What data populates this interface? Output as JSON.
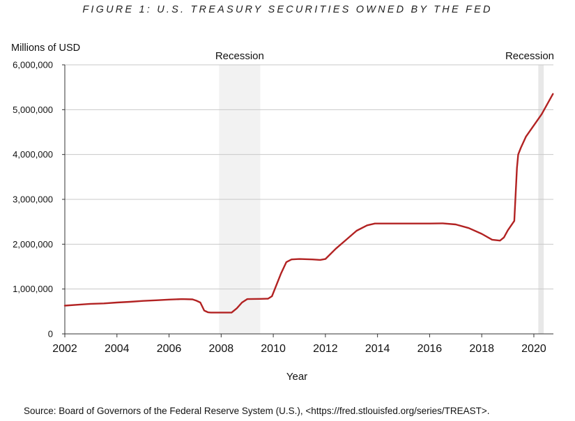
{
  "title": "FIGURE 1: U.S. TREASURY SECURITIES OWNED BY THE FED",
  "ylabel": "Millions of USD",
  "xlabel": "Year",
  "source": "Source: Board of Governors of the Federal Reserve System (U.S.), <https://fred.stlouisfed.org/series/TREAST>.",
  "chart_data": {
    "type": "line",
    "title": "FIGURE 1: U.S. TREASURY SECURITIES OWNED BY THE FED",
    "xlabel": "Year",
    "ylabel": "Millions of USD",
    "xlim": [
      2002,
      2020.75
    ],
    "ylim": [
      0,
      6000000
    ],
    "grid": true,
    "line_color": "#b22222",
    "recession_color": "#f2f2f2",
    "y_ticks": [
      0,
      1000000,
      2000000,
      3000000,
      4000000,
      5000000,
      6000000
    ],
    "y_tick_labels": [
      "0",
      "1,000,000",
      "2,000,000",
      "3,000,000",
      "4,000,000",
      "5,000,000",
      "6,000,000"
    ],
    "x_ticks": [
      2002,
      2004,
      2006,
      2008,
      2010,
      2012,
      2014,
      2016,
      2018,
      2020
    ],
    "x_tick_labels": [
      "2002",
      "2004",
      "2006",
      "2008",
      "2010",
      "2012",
      "2014",
      "2016",
      "2018",
      "2020"
    ],
    "recessions": [
      {
        "label": "Recession",
        "start": 2007.92,
        "end": 2009.5
      },
      {
        "label": "Recession",
        "start": 2020.17,
        "end": 2020.38
      }
    ],
    "x": [
      2002.0,
      2002.5,
      2003.0,
      2003.5,
      2004.0,
      2004.5,
      2005.0,
      2005.5,
      2006.0,
      2006.5,
      2006.9,
      2007.05,
      2007.2,
      2007.35,
      2007.5,
      2007.6,
      2008.0,
      2008.4,
      2008.6,
      2008.8,
      2009.0,
      2009.5,
      2009.8,
      2009.95,
      2010.3,
      2010.5,
      2010.7,
      2011.0,
      2011.5,
      2011.8,
      2012.0,
      2012.4,
      2012.8,
      2013.2,
      2013.6,
      2013.9,
      2014.5,
      2015.0,
      2015.5,
      2016.0,
      2016.5,
      2017.0,
      2017.5,
      2018.0,
      2018.4,
      2018.7,
      2018.85,
      2019.0,
      2019.25,
      2019.35,
      2019.4,
      2019.5,
      2019.7,
      2020.0,
      2020.3,
      2020.73
    ],
    "values": [
      630000,
      650000,
      670000,
      680000,
      700000,
      715000,
      735000,
      750000,
      765000,
      775000,
      770000,
      740000,
      700000,
      520000,
      480000,
      475000,
      475000,
      475000,
      570000,
      700000,
      775000,
      780000,
      785000,
      840000,
      1350000,
      1600000,
      1660000,
      1670000,
      1660000,
      1650000,
      1670000,
      1900000,
      2100000,
      2300000,
      2420000,
      2460000,
      2460000,
      2460000,
      2460000,
      2460000,
      2465000,
      2440000,
      2360000,
      2230000,
      2100000,
      2080000,
      2150000,
      2310000,
      2520000,
      3700000,
      4000000,
      4150000,
      4400000,
      4650000,
      4900000,
      5350000
    ]
  }
}
